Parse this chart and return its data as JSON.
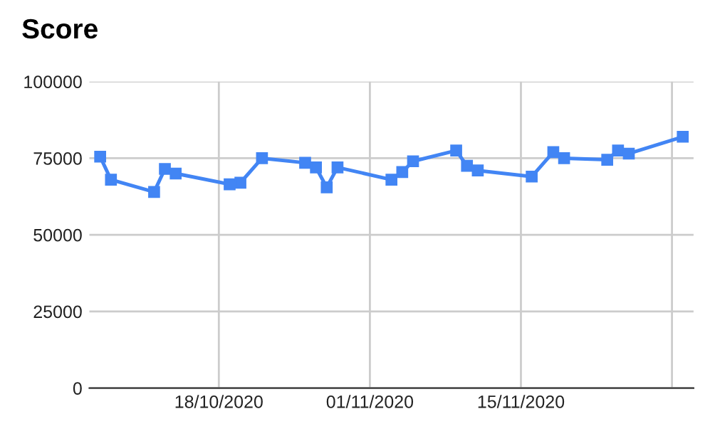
{
  "chart_data": {
    "type": "line",
    "title": "Score",
    "x": [
      "2020-10-07",
      "2020-10-08",
      "2020-10-12",
      "2020-10-13",
      "2020-10-14",
      "2020-10-19",
      "2020-10-20",
      "2020-10-22",
      "2020-10-26",
      "2020-10-27",
      "2020-10-28",
      "2020-10-29",
      "2020-11-03",
      "2020-11-04",
      "2020-11-05",
      "2020-11-09",
      "2020-11-10",
      "2020-11-11",
      "2020-11-16",
      "2020-11-18",
      "2020-11-19",
      "2020-11-23",
      "2020-11-24",
      "2020-11-25",
      "2020-11-30"
    ],
    "series": [
      {
        "color": "#4285f4",
        "values": [
          75500,
          68000,
          64000,
          71500,
          70000,
          66500,
          67000,
          75000,
          73500,
          72000,
          65500,
          72000,
          68000,
          70500,
          74000,
          77500,
          72500,
          71000,
          69000,
          77000,
          75000,
          74500,
          77500,
          76500,
          82000
        ]
      }
    ],
    "xlim": [
      "2020-10-06",
      "2020-12-01"
    ],
    "xticks": [
      {
        "value": "2020-10-18",
        "label": "18/10/2020"
      },
      {
        "value": "2020-11-01",
        "label": "01/11/2020"
      },
      {
        "value": "2020-11-15",
        "label": "15/11/2020"
      },
      {
        "value": "2020-11-29",
        "label": null
      }
    ],
    "ylim": [
      0,
      100000
    ],
    "yticks": [
      0,
      25000,
      50000,
      75000,
      100000
    ],
    "grid": true,
    "marker": "square",
    "line_style": "solid"
  }
}
